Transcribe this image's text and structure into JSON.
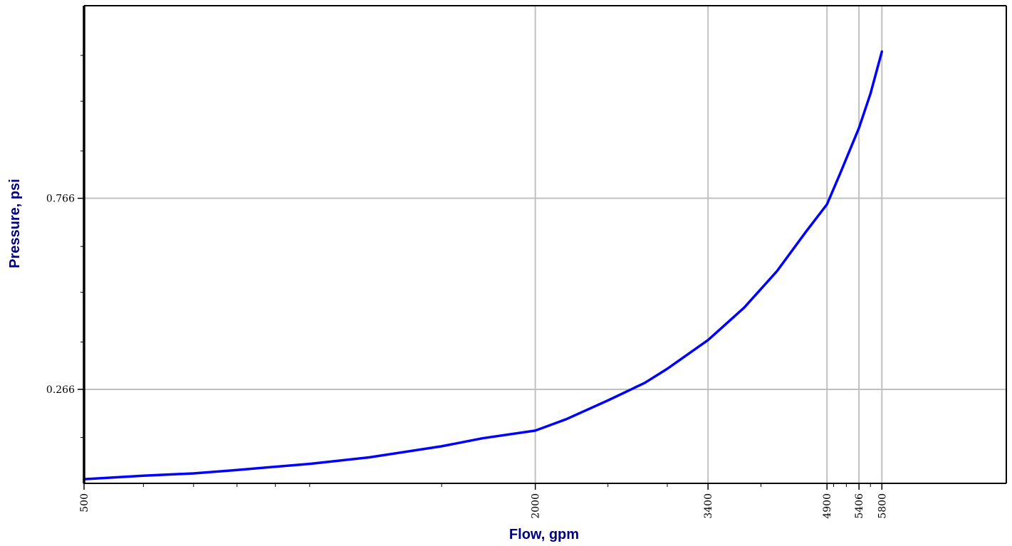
{
  "colors": {
    "series": "#0000ff",
    "axis_title": "#000080",
    "grid": "#c0c0c0",
    "frame": "#000000"
  },
  "chart_data": {
    "type": "line",
    "title": "",
    "xlabel": "Flow, gpm",
    "ylabel": "Pressure, psi",
    "x_scale": "log",
    "xlim": [
      500,
      8500
    ],
    "ylim": [
      0.02,
      1.27
    ],
    "grid": true,
    "legend": "none",
    "x_ticks": [
      500,
      2000,
      3400,
      4900,
      5406,
      5800
    ],
    "x_tick_labels": [
      "500",
      "2000",
      "3400",
      "4900",
      "5406",
      "5800"
    ],
    "y_ticks": [
      0.266,
      0.766
    ],
    "y_tick_labels": [
      "0.266",
      "0.766"
    ],
    "x_minor_ticks": [
      600,
      700,
      800,
      900,
      1000,
      1500,
      2500,
      3000,
      4000,
      5000,
      5200,
      5600
    ],
    "y_minor_ticks": [
      0.14,
      0.39,
      0.52,
      0.64,
      0.89,
      1.02,
      1.14
    ],
    "series": [
      {
        "x": [
          500,
          600,
          700,
          800,
          1000,
          1200,
          1500,
          1700,
          2000,
          2200,
          2500,
          2800,
          3000,
          3400,
          3800,
          4200,
          4600,
          4900,
          5100,
          5406,
          5600,
          5800
        ],
        "y": [
          0.031,
          0.04,
          0.046,
          0.055,
          0.071,
          0.088,
          0.117,
          0.138,
          0.158,
          0.188,
          0.237,
          0.283,
          0.32,
          0.395,
          0.48,
          0.575,
          0.68,
          0.75,
          0.83,
          0.95,
          1.04,
          1.15
        ]
      }
    ]
  }
}
